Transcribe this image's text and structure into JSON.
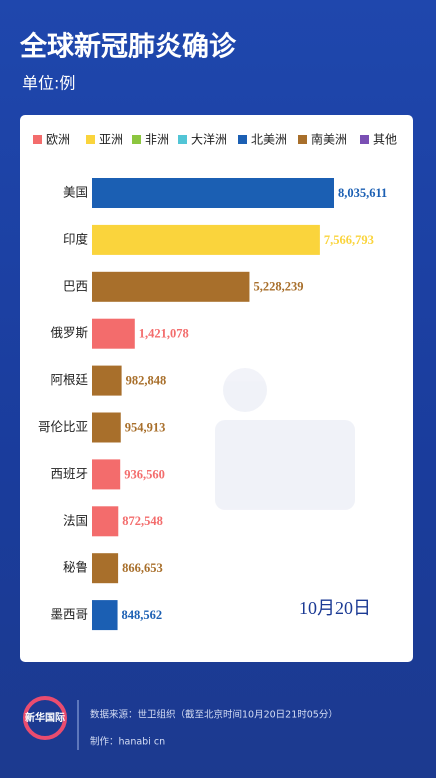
{
  "chart_data": {
    "type": "bar",
    "orientation": "horizontal",
    "title": "全球新冠肺炎确诊",
    "subtitle": "单位:例",
    "legend": [
      {
        "name": "欧洲",
        "color": "#f36c6c"
      },
      {
        "name": "亚洲",
        "color": "#fad43c"
      },
      {
        "name": "非洲",
        "color": "#8cc63f"
      },
      {
        "name": "大洋洲",
        "color": "#52c5d6"
      },
      {
        "name": "北美洲",
        "color": "#1b5fb3"
      },
      {
        "name": "南美洲",
        "color": "#a86f2b"
      },
      {
        "name": "其他",
        "color": "#7a4fb4"
      }
    ],
    "categories": [
      "美国",
      "印度",
      "巴西",
      "俄罗斯",
      "阿根廷",
      "哥伦比亚",
      "西班牙",
      "法国",
      "秘鲁",
      "墨西哥"
    ],
    "values": [
      8035611,
      7566793,
      5228239,
      1421078,
      982848,
      954913,
      936560,
      872548,
      866653,
      848562
    ],
    "value_labels": [
      "8,035,611",
      "7,566,793",
      "5,228,239",
      "1,421,078",
      "982,848",
      "954,913",
      "936,560",
      "872,548",
      "866,653",
      "848,562"
    ],
    "colors": [
      "#1b5fb3",
      "#fad43c",
      "#a86f2b",
      "#f36c6c",
      "#a86f2b",
      "#a86f2b",
      "#f36c6c",
      "#f36c6c",
      "#a86f2b",
      "#1b5fb3"
    ],
    "annotation": "10月20日"
  },
  "footer": {
    "logo": "新华国际",
    "source": "数据来源：世卫组织（截至北京时间10月20日21时05分）",
    "credit": "制作：hanabi cn"
  }
}
